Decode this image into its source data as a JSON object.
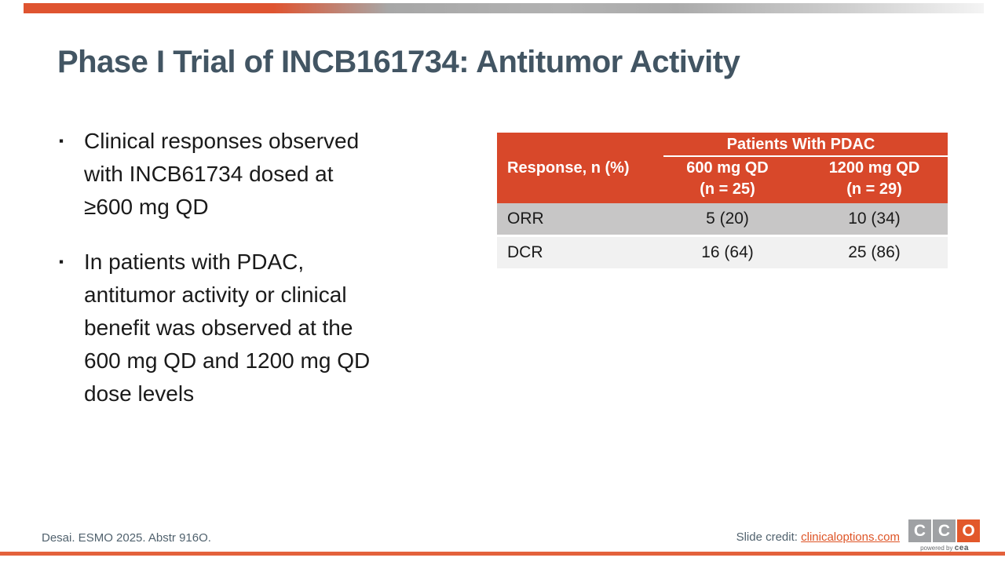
{
  "slide": {
    "title": "Phase I Trial of INCB161734: Antitumor Activity",
    "bullet_marker": "▪",
    "bullets": [
      "Clinical responses observed\nwith INCB61734 dosed at\n≥600 mg QD",
      "In patients with PDAC,\nantitumor activity or clinical\nbenefit was observed at the\n600 mg QD and 1200 mg QD\ndose levels"
    ]
  },
  "table": {
    "row_header_label": "Response, n (%)",
    "group_header": "Patients With PDAC",
    "columns": [
      {
        "line1": "600 mg QD",
        "line2": "(n = 25)"
      },
      {
        "line1": "1200 mg QD",
        "line2": "(n = 29)"
      }
    ],
    "rows": [
      {
        "label": "ORR",
        "values": [
          "5 (20)",
          "10 (34)"
        ]
      },
      {
        "label": "DCR",
        "values": [
          "16 (64)",
          "25 (86)"
        ]
      }
    ]
  },
  "footer": {
    "reference": "Desai. ESMO 2025. Abstr 916O.",
    "credit_label": "Slide credit: ",
    "credit_link": "clinicaloptions.com",
    "logo": {
      "letters": [
        "C",
        "C",
        "O"
      ],
      "tagline_prefix": "powered by",
      "tagline_brand": "cea"
    }
  },
  "colors": {
    "table_header_orange": "#d8482a",
    "accent_orange": "#de5426",
    "topbar_orange": "#df5430",
    "bottombar_orange": "#e3613b",
    "title_slate": "#425563",
    "footer_slate": "#51626e",
    "row_gray": "#c7c6c6",
    "row_light": "#f1f1f1",
    "logo_gray": "#9fa1a4"
  }
}
